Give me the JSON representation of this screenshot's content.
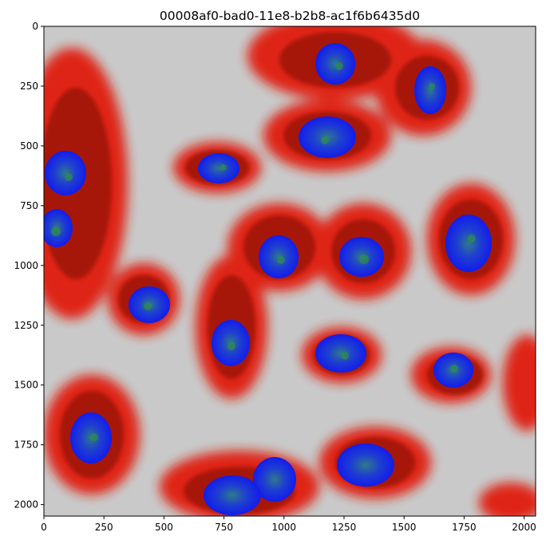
{
  "figure": {
    "title": "00008af0-bad0-11e8-b2b8-ac1f6b6435d0",
    "x_ticks": [
      "0",
      "250",
      "500",
      "750",
      "1000",
      "1250",
      "1500",
      "1750",
      "2000"
    ],
    "y_ticks": [
      "0",
      "250",
      "500",
      "750",
      "1000",
      "1250",
      "1500",
      "1750",
      "2000"
    ],
    "image_extent": [
      0,
      2048,
      2048,
      0
    ],
    "colors": {
      "background": "#c9c9c9",
      "cytoplasm": "#e01a0a",
      "cytoplasm_dark": "#7a0c06",
      "nucleus": "#1a1ee8",
      "nucleus_spots": "#2f8f4a"
    }
  }
}
